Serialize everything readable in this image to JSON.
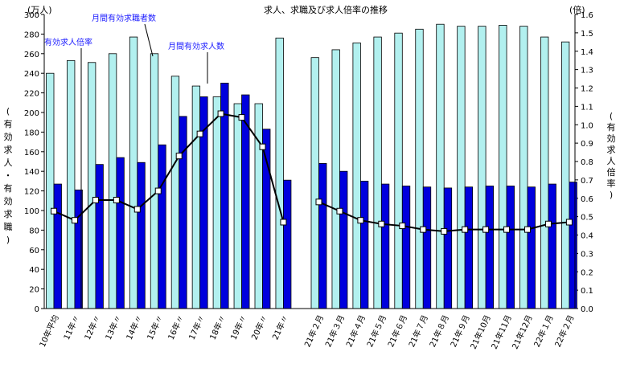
{
  "chart_data": {
    "type": "bar",
    "title": "求人、求職及び求人倍率の推移",
    "left_unit": "(万人)",
    "right_unit": "(倍)",
    "ylabel_left": "(有効求人・有効求職)",
    "ylabel_right": "(有効求人倍率)",
    "ylim_left": [
      0,
      300
    ],
    "ylim_right": [
      0,
      1.6
    ],
    "yticks_left": [
      "0",
      "20",
      "40",
      "60",
      "80",
      "100",
      "120",
      "140",
      "160",
      "180",
      "200",
      "220",
      "240",
      "260",
      "280",
      "300"
    ],
    "yticks_right": [
      "0.0",
      "0.1",
      "0.2",
      "0.3",
      "0.4",
      "0.5",
      "0.6",
      "0.7",
      "0.8",
      "0.9",
      "1.0",
      "1.1",
      "1.2",
      "1.3",
      "1.4",
      "1.5",
      "1.6"
    ],
    "grid": false,
    "annotations": {
      "ratio_label": "有効求人倍率",
      "seekers_label": "月間有効求職者数",
      "openings_label": "月間有効求人数"
    },
    "categories": [
      "10年平均",
      "11年〃",
      "12年〃",
      "13年〃",
      "14年〃",
      "15年〃",
      "16年〃",
      "17年〃",
      "18年〃",
      "19年〃",
      "20年〃",
      "21年〃",
      "21年２月",
      "21年３月",
      "21年４月",
      "21年５月",
      "21年６月",
      "21年７月",
      "21年８月",
      "21年９月",
      "21年10月",
      "21年11月",
      "21年12月",
      "22年１月",
      "22年２月"
    ],
    "series": [
      {
        "name": "月間有効求職者数",
        "type": "bar",
        "axis": "left",
        "color": "#b2f0ef",
        "values": [
          240,
          253,
          251,
          260,
          277,
          260,
          237,
          227,
          216,
          209,
          209,
          276,
          256,
          264,
          271,
          277,
          281,
          285,
          290,
          288,
          288,
          289,
          288,
          277,
          272
        ]
      },
      {
        "name": "月間有効求人数",
        "type": "bar",
        "axis": "left",
        "color": "#0000dd",
        "values": [
          127,
          121,
          147,
          154,
          149,
          167,
          196,
          216,
          230,
          218,
          183,
          131,
          148,
          140,
          130,
          127,
          125,
          124,
          123,
          124,
          125,
          125,
          124,
          127,
          129
        ]
      },
      {
        "name": "有効求人倍率",
        "type": "line",
        "axis": "right",
        "color": "#000000",
        "values": [
          0.53,
          0.48,
          0.59,
          0.59,
          0.54,
          0.64,
          0.83,
          0.95,
          1.06,
          1.04,
          0.88,
          0.47,
          0.58,
          0.53,
          0.48,
          0.46,
          0.45,
          0.43,
          0.42,
          0.43,
          0.43,
          0.43,
          0.43,
          0.46,
          0.47
        ]
      }
    ]
  }
}
